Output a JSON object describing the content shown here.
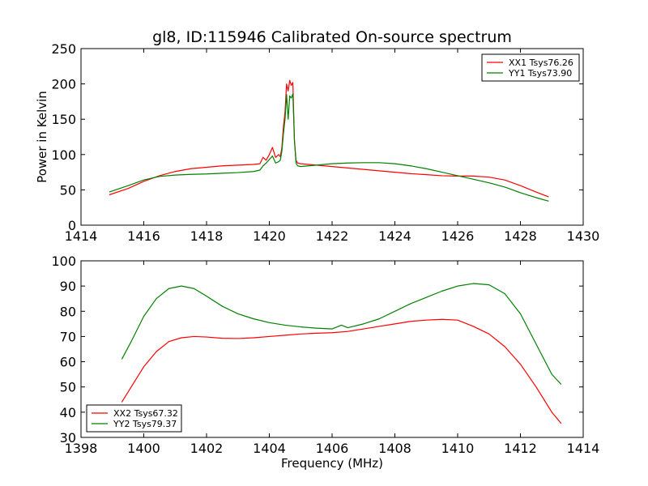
{
  "figure": {
    "title": "gl8, ID:115946 Calibrated On-source spectrum"
  },
  "chart_data": [
    {
      "type": "line",
      "ylabel": "Power in Kelvin",
      "xlabel": "",
      "xlim": [
        1414,
        1430
      ],
      "ylim": [
        0,
        250
      ],
      "xticks": [
        1414,
        1416,
        1418,
        1420,
        1422,
        1424,
        1426,
        1428,
        1430
      ],
      "yticks": [
        0,
        50,
        100,
        150,
        200,
        250
      ],
      "grid": false,
      "legend_position": "top-right",
      "series": [
        {
          "name": "XX1 Tsys76.26",
          "color": "#ff0000",
          "points": [
            [
              1414.9,
              43
            ],
            [
              1415.5,
              52
            ],
            [
              1416.0,
              62
            ],
            [
              1416.5,
              70
            ],
            [
              1417.0,
              76
            ],
            [
              1417.5,
              80
            ],
            [
              1418.0,
              82
            ],
            [
              1418.5,
              84
            ],
            [
              1419.0,
              85
            ],
            [
              1419.5,
              86
            ],
            [
              1419.7,
              87
            ],
            [
              1419.8,
              96
            ],
            [
              1419.9,
              92
            ],
            [
              1420.0,
              100
            ],
            [
              1420.1,
              110
            ],
            [
              1420.2,
              96
            ],
            [
              1420.3,
              100
            ],
            [
              1420.35,
              97
            ],
            [
              1420.4,
              110
            ],
            [
              1420.45,
              140
            ],
            [
              1420.5,
              160
            ],
            [
              1420.55,
              200
            ],
            [
              1420.6,
              190
            ],
            [
              1420.65,
              205
            ],
            [
              1420.7,
              198
            ],
            [
              1420.75,
              202
            ],
            [
              1420.8,
              120
            ],
            [
              1420.85,
              92
            ],
            [
              1420.9,
              88
            ],
            [
              1421.0,
              87
            ],
            [
              1421.5,
              85
            ],
            [
              1422.0,
              83
            ],
            [
              1422.5,
              81
            ],
            [
              1423.0,
              79
            ],
            [
              1423.5,
              77
            ],
            [
              1424.0,
              75
            ],
            [
              1424.5,
              73
            ],
            [
              1425.0,
              71.5
            ],
            [
              1425.5,
              70
            ],
            [
              1426.0,
              69.5
            ],
            [
              1426.5,
              69.5
            ],
            [
              1427.0,
              68
            ],
            [
              1427.5,
              64
            ],
            [
              1428.0,
              56
            ],
            [
              1428.5,
              47
            ],
            [
              1428.9,
              40
            ]
          ]
        },
        {
          "name": "YY1 Tsys73.90",
          "color": "#008000",
          "points": [
            [
              1414.9,
              47
            ],
            [
              1415.5,
              56
            ],
            [
              1416.0,
              64
            ],
            [
              1416.5,
              69
            ],
            [
              1417.0,
              71
            ],
            [
              1417.5,
              72
            ],
            [
              1418.0,
              72.5
            ],
            [
              1418.5,
              73.5
            ],
            [
              1419.0,
              74.5
            ],
            [
              1419.5,
              76
            ],
            [
              1419.7,
              78
            ],
            [
              1419.8,
              84
            ],
            [
              1419.9,
              88
            ],
            [
              1420.0,
              93
            ],
            [
              1420.1,
              98
            ],
            [
              1420.2,
              88
            ],
            [
              1420.3,
              90
            ],
            [
              1420.35,
              92
            ],
            [
              1420.4,
              105
            ],
            [
              1420.45,
              130
            ],
            [
              1420.5,
              150
            ],
            [
              1420.55,
              185
            ],
            [
              1420.6,
              150
            ],
            [
              1420.65,
              183
            ],
            [
              1420.7,
              180
            ],
            [
              1420.75,
              186
            ],
            [
              1420.8,
              120
            ],
            [
              1420.85,
              88
            ],
            [
              1420.9,
              84
            ],
            [
              1421.0,
              83
            ],
            [
              1421.5,
              85
            ],
            [
              1422.0,
              87
            ],
            [
              1422.5,
              88
            ],
            [
              1423.0,
              88.5
            ],
            [
              1423.5,
              88.5
            ],
            [
              1424.0,
              87
            ],
            [
              1424.5,
              84
            ],
            [
              1425.0,
              80
            ],
            [
              1425.5,
              75
            ],
            [
              1426.0,
              70
            ],
            [
              1426.5,
              65
            ],
            [
              1427.0,
              60
            ],
            [
              1427.5,
              54
            ],
            [
              1428.0,
              46
            ],
            [
              1428.5,
              39
            ],
            [
              1428.9,
              34
            ]
          ]
        }
      ]
    },
    {
      "type": "line",
      "ylabel": "",
      "xlabel": "Frequency (MHz)",
      "xlim": [
        1398,
        1414
      ],
      "ylim": [
        30,
        100
      ],
      "xticks": [
        1398,
        1400,
        1402,
        1404,
        1406,
        1408,
        1410,
        1412,
        1414
      ],
      "yticks": [
        30,
        40,
        50,
        60,
        70,
        80,
        90,
        100
      ],
      "grid": false,
      "legend_position": "bottom-left",
      "series": [
        {
          "name": "XX2 Tsys67.32",
          "color": "#ff0000",
          "points": [
            [
              1399.3,
              44
            ],
            [
              1399.6,
              50
            ],
            [
              1400.0,
              58
            ],
            [
              1400.4,
              64
            ],
            [
              1400.8,
              68
            ],
            [
              1401.2,
              69.5
            ],
            [
              1401.6,
              70
            ],
            [
              1402.0,
              69.8
            ],
            [
              1402.5,
              69.3
            ],
            [
              1403.0,
              69.2
            ],
            [
              1403.5,
              69.5
            ],
            [
              1404.0,
              70
            ],
            [
              1404.5,
              70.5
            ],
            [
              1405.0,
              71
            ],
            [
              1405.5,
              71.3
            ],
            [
              1406.0,
              71.5
            ],
            [
              1406.5,
              72
            ],
            [
              1407.0,
              73
            ],
            [
              1407.5,
              74
            ],
            [
              1408.0,
              75
            ],
            [
              1408.5,
              76
            ],
            [
              1409.0,
              76.5
            ],
            [
              1409.5,
              76.8
            ],
            [
              1410.0,
              76.5
            ],
            [
              1410.5,
              74
            ],
            [
              1411.0,
              71
            ],
            [
              1411.5,
              66
            ],
            [
              1412.0,
              59
            ],
            [
              1412.5,
              50
            ],
            [
              1413.0,
              40
            ],
            [
              1413.3,
              35.5
            ]
          ]
        },
        {
          "name": "YY2 Tsys79.37",
          "color": "#008000",
          "points": [
            [
              1399.3,
              61
            ],
            [
              1399.6,
              68
            ],
            [
              1400.0,
              78
            ],
            [
              1400.4,
              85
            ],
            [
              1400.8,
              89
            ],
            [
              1401.2,
              90
            ],
            [
              1401.6,
              89
            ],
            [
              1402.0,
              86
            ],
            [
              1402.5,
              82
            ],
            [
              1403.0,
              79
            ],
            [
              1403.5,
              77
            ],
            [
              1404.0,
              75.5
            ],
            [
              1404.5,
              74.5
            ],
            [
              1405.0,
              73.8
            ],
            [
              1405.5,
              73.3
            ],
            [
              1406.0,
              73
            ],
            [
              1406.3,
              74.5
            ],
            [
              1406.5,
              73.5
            ],
            [
              1407.0,
              75
            ],
            [
              1407.5,
              77
            ],
            [
              1408.0,
              80
            ],
            [
              1408.5,
              83
            ],
            [
              1409.0,
              85.5
            ],
            [
              1409.5,
              88
            ],
            [
              1410.0,
              90
            ],
            [
              1410.5,
              91
            ],
            [
              1411.0,
              90.5
            ],
            [
              1411.5,
              87
            ],
            [
              1412.0,
              79
            ],
            [
              1412.5,
              67
            ],
            [
              1413.0,
              55
            ],
            [
              1413.3,
              51
            ]
          ]
        }
      ]
    }
  ]
}
